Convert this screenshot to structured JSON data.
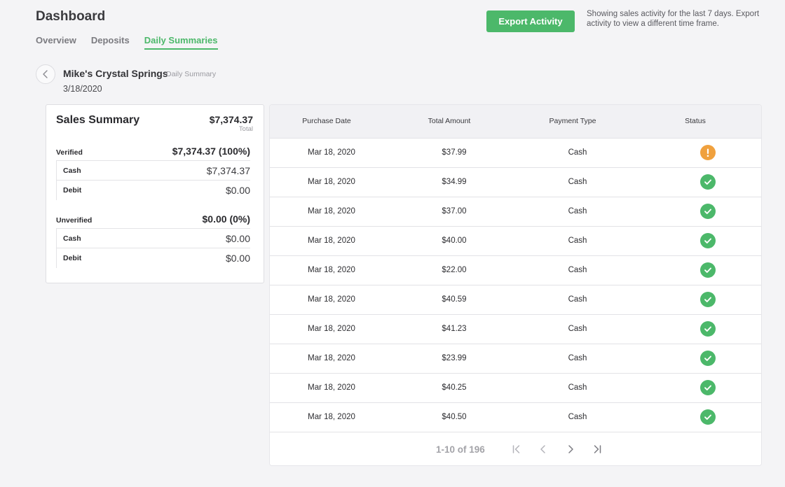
{
  "header": {
    "title": "Dashboard",
    "tabs": [
      {
        "label": "Overview"
      },
      {
        "label": "Deposits"
      },
      {
        "label": "Daily Summaries"
      }
    ],
    "active_tab": "Daily Summaries"
  },
  "export": {
    "button_label": "Export Activity",
    "note": "Showing sales activity for the last 7 days. Export activity to view a different time frame."
  },
  "store": {
    "name": "Mike's Crystal Springs",
    "subtitle": "Daily Summary",
    "date": "3/18/2020"
  },
  "summary": {
    "title": "Sales Summary",
    "total_value": "$7,374.37",
    "total_label": "Total",
    "verified": {
      "label": "Verified",
      "value": "$7,374.37 (100%)",
      "items": [
        {
          "label": "Cash",
          "value": "$7,374.37"
        },
        {
          "label": "Debit",
          "value": "$0.00"
        }
      ]
    },
    "unverified": {
      "label": "Unverified",
      "value": "$0.00 (0%)",
      "items": [
        {
          "label": "Cash",
          "value": "$0.00"
        },
        {
          "label": "Debit",
          "value": "$0.00"
        }
      ]
    }
  },
  "table": {
    "columns": [
      "Purchase Date",
      "Total Amount",
      "Payment Type",
      "Status"
    ],
    "rows": [
      {
        "date": "Mar 18, 2020",
        "amount": "$37.99",
        "payment": "Cash",
        "status": "warning"
      },
      {
        "date": "Mar 18, 2020",
        "amount": "$34.99",
        "payment": "Cash",
        "status": "verified"
      },
      {
        "date": "Mar 18, 2020",
        "amount": "$37.00",
        "payment": "Cash",
        "status": "verified"
      },
      {
        "date": "Mar 18, 2020",
        "amount": "$40.00",
        "payment": "Cash",
        "status": "verified"
      },
      {
        "date": "Mar 18, 2020",
        "amount": "$22.00",
        "payment": "Cash",
        "status": "verified"
      },
      {
        "date": "Mar 18, 2020",
        "amount": "$40.59",
        "payment": "Cash",
        "status": "verified"
      },
      {
        "date": "Mar 18, 2020",
        "amount": "$41.23",
        "payment": "Cash",
        "status": "verified"
      },
      {
        "date": "Mar 18, 2020",
        "amount": "$23.99",
        "payment": "Cash",
        "status": "verified"
      },
      {
        "date": "Mar 18, 2020",
        "amount": "$40.25",
        "payment": "Cash",
        "status": "verified"
      },
      {
        "date": "Mar 18, 2020",
        "amount": "$40.50",
        "payment": "Cash",
        "status": "verified"
      }
    ]
  },
  "pagination": {
    "label": "1-10 of 196"
  },
  "colors": {
    "accent": "#4cb86a",
    "warning": "#f0a13e",
    "background": "#f4f4f6"
  }
}
